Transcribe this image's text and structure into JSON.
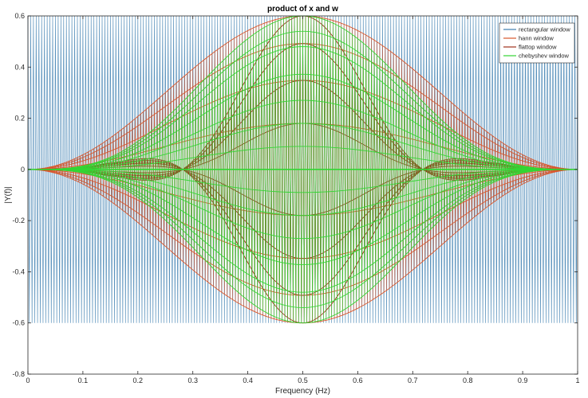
{
  "chart_data": {
    "type": "line",
    "title": "product of x and w",
    "xlabel": "Frequency (Hz)",
    "ylabel": "|Y(f)|",
    "xlim": [
      0,
      1
    ],
    "ylim": [
      -0.8,
      0.6
    ],
    "xticks": [
      0,
      0.1,
      0.2,
      0.3,
      0.4,
      0.5,
      0.6,
      0.7,
      0.8,
      0.9,
      1
    ],
    "yticks": [
      -0.8,
      -0.6,
      -0.4,
      -0.2,
      0,
      0.2,
      0.4,
      0.6
    ],
    "grid": false,
    "legend_position": "top-right",
    "series": [
      {
        "name": "rectangular window",
        "color": "#3d7fb0",
        "amplitude": 0.6,
        "envelope": "rectangular"
      },
      {
        "name": "hann window",
        "color": "#d9562b",
        "amplitude": 0.6,
        "envelope": "hann"
      },
      {
        "name": "flattop window",
        "color": "#a0301a",
        "amplitude": 0.6,
        "envelope": "flattop"
      },
      {
        "name": "chebyshev window",
        "color": "#33d633",
        "amplitude": 0.6,
        "envelope": "chebyshev"
      }
    ]
  }
}
